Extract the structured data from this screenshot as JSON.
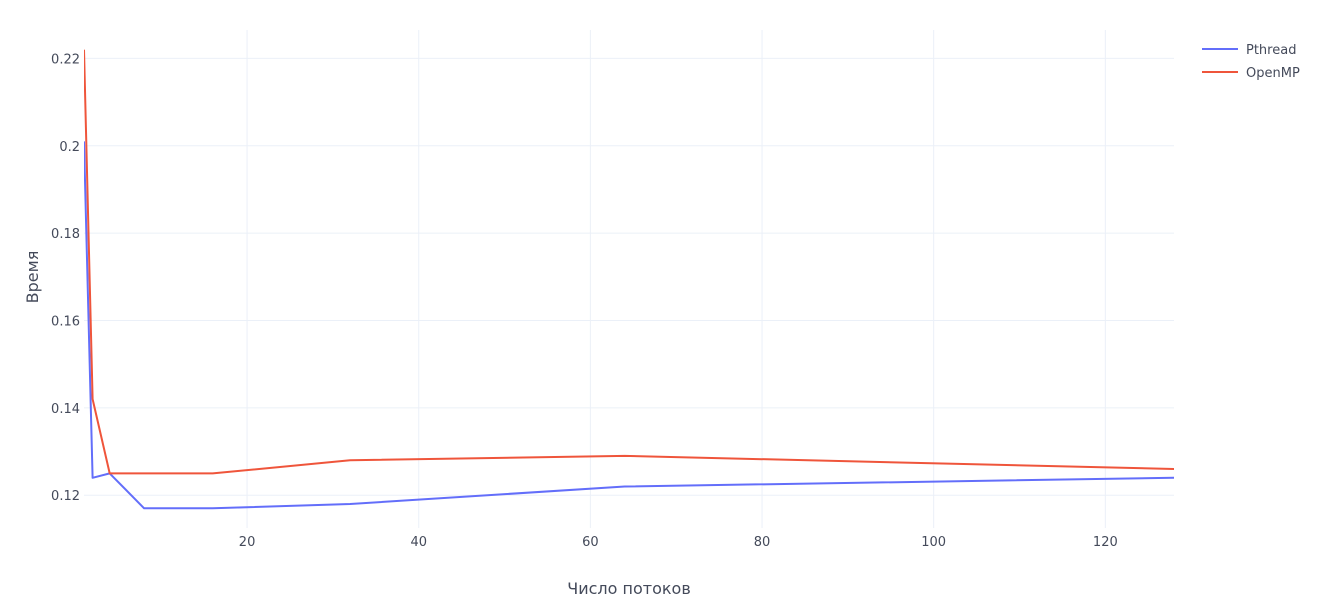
{
  "chart_data": {
    "type": "line",
    "xlabel": "Число потоков",
    "ylabel": "Время",
    "xlim": [
      1,
      128
    ],
    "ylim": [
      0.1125,
      0.2265
    ],
    "x_ticks": [
      20,
      40,
      60,
      80,
      100,
      120
    ],
    "y_ticks": [
      0.12,
      0.14,
      0.16,
      0.18,
      0.2,
      0.22
    ],
    "y_tick_labels": [
      "0.12",
      "0.14",
      "0.16",
      "0.18",
      "0.2",
      "0.22"
    ],
    "grid": true,
    "legend_position": "top-right",
    "series": [
      {
        "name": "Pthread",
        "color": "#636efa",
        "x": [
          1,
          2,
          4,
          8,
          16,
          32,
          64,
          128
        ],
        "y": [
          0.201,
          0.124,
          0.125,
          0.117,
          0.117,
          0.118,
          0.122,
          0.124
        ]
      },
      {
        "name": "OpenMP",
        "color": "#ef553b",
        "x": [
          1,
          2,
          4,
          8,
          16,
          32,
          64,
          128
        ],
        "y": [
          0.222,
          0.142,
          0.125,
          0.125,
          0.125,
          0.128,
          0.129,
          0.126
        ]
      }
    ]
  }
}
